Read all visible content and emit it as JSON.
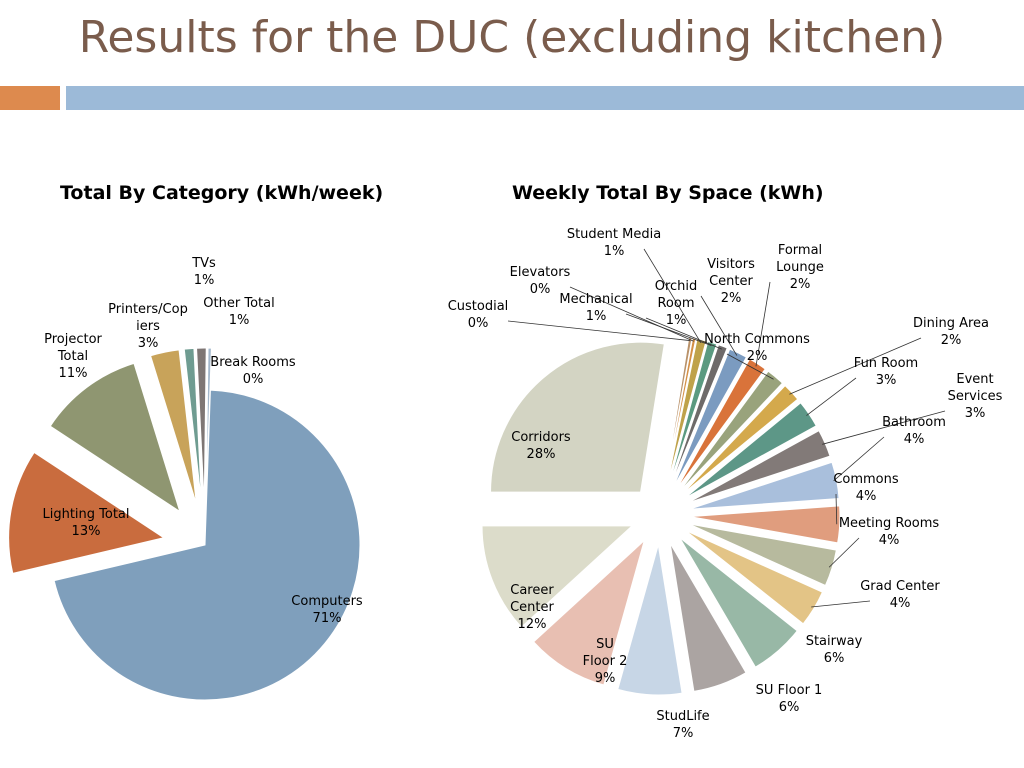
{
  "slide": {
    "title": "Results for the DUC (excluding kitchen)"
  },
  "colors": {
    "title_text": "#7a5c4c",
    "accent_orange": "#dd8a4e",
    "accent_blue": "#9cbad8"
  },
  "chart_data": [
    {
      "type": "pie",
      "title": "Total By Category (kWh/week)",
      "slices": [
        {
          "label": "Computers",
          "percent": "71%",
          "value": 71,
          "color": "#7f9fbc"
        },
        {
          "label": "Lighting Total",
          "percent": "13%",
          "value": 13,
          "color": "#c96c3e"
        },
        {
          "label": "Projector Total",
          "percent": "11%",
          "value": 11,
          "color": "#8f9671"
        },
        {
          "label": "Printers/Copiers",
          "percent": "3%",
          "value": 3,
          "color": "#c8a35a"
        },
        {
          "label": "TVs",
          "percent": "1%",
          "value": 1,
          "color": "#6f9c91"
        },
        {
          "label": "Other Total",
          "percent": "1%",
          "value": 1,
          "color": "#7e7674"
        },
        {
          "label": "Break Rooms",
          "percent": "0%",
          "value": 0,
          "color": "#a4b8cc"
        }
      ]
    },
    {
      "type": "pie",
      "title": "Weekly Total By Space (kWh)",
      "slices": [
        {
          "label": "Corridors",
          "percent": "28%",
          "value": 28,
          "color": "#d3d4c3"
        },
        {
          "label": "Custodial",
          "percent": "0%",
          "value": 0,
          "color": "#b9926a"
        },
        {
          "label": "Elevators",
          "percent": "0%",
          "value": 0,
          "color": "#d49046"
        },
        {
          "label": "Student Media",
          "percent": "1%",
          "value": 1,
          "color": "#bfa24a"
        },
        {
          "label": "Mechanical",
          "percent": "1%",
          "value": 1,
          "color": "#5b9a80"
        },
        {
          "label": "Orchid Room",
          "percent": "1%",
          "value": 1,
          "color": "#6e6a69"
        },
        {
          "label": "Visitors Center",
          "percent": "2%",
          "value": 2,
          "color": "#7b9bc0"
        },
        {
          "label": "Formal Lounge",
          "percent": "2%",
          "value": 2,
          "color": "#d9733a"
        },
        {
          "label": "North Commons",
          "percent": "2%",
          "value": 2,
          "color": "#99a37c"
        },
        {
          "label": "Dining Area",
          "percent": "2%",
          "value": 2,
          "color": "#d4a94c"
        },
        {
          "label": "Fun Room",
          "percent": "3%",
          "value": 3,
          "color": "#5d9787"
        },
        {
          "label": "Event Services",
          "percent": "3%",
          "value": 3,
          "color": "#827a78"
        },
        {
          "label": "Bathroom",
          "percent": "4%",
          "value": 4,
          "color": "#a9bfdc"
        },
        {
          "label": "Commons",
          "percent": "4%",
          "value": 4,
          "color": "#e09d7e"
        },
        {
          "label": "Meeting Rooms",
          "percent": "4%",
          "value": 4,
          "color": "#b7ba9e"
        },
        {
          "label": "Grad Center",
          "percent": "4%",
          "value": 4,
          "color": "#e3c486"
        },
        {
          "label": "Stairway",
          "percent": "6%",
          "value": 6,
          "color": "#98b8a6"
        },
        {
          "label": "SU Floor 1",
          "percent": "6%",
          "value": 6,
          "color": "#aba4a2"
        },
        {
          "label": "StudLife",
          "percent": "7%",
          "value": 7,
          "color": "#c7d6e6"
        },
        {
          "label": "SU Floor 2",
          "percent": "9%",
          "value": 9,
          "color": "#e8bfb2"
        },
        {
          "label": "Career Center",
          "percent": "12%",
          "value": 12,
          "color": "#dcdcca"
        }
      ]
    }
  ]
}
